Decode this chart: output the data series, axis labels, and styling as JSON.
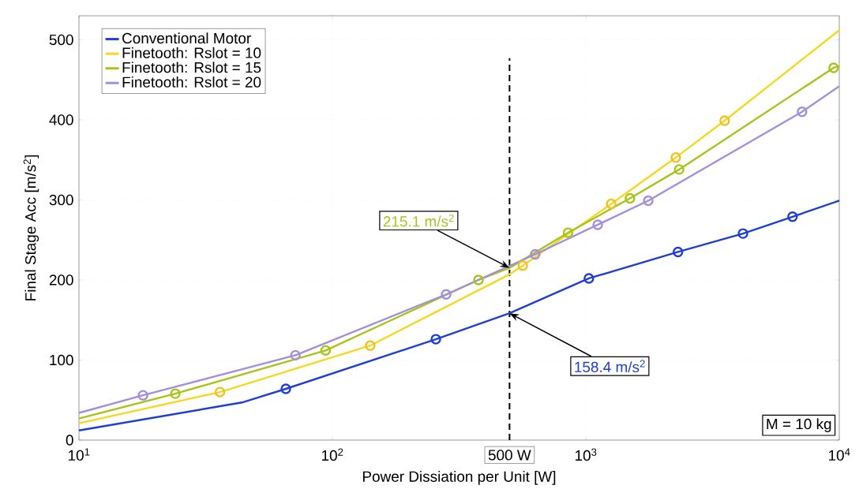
{
  "chart_data": {
    "type": "line",
    "xlabel": "Power Dissiation per Unit [W]",
    "ylabel": "Final Stage Acc [m/s$^{2}$]",
    "log": "x",
    "grid": true,
    "legend": "top left",
    "line_style": "solid",
    "xlim": [
      10,
      10000
    ],
    "ylim": [
      0,
      530
    ],
    "xticks": [
      {
        "value": 10,
        "label": "10$^{1}$"
      },
      {
        "value": 100,
        "label": "10$^{2}$"
      },
      {
        "value": 1000,
        "label": "10$^{3}$"
      },
      {
        "value": 10000,
        "label": "10$^{4}$"
      }
    ],
    "yticks": [
      0,
      100,
      200,
      300,
      400,
      500
    ],
    "series": [
      {
        "name": "Conventional Motor",
        "color": "#1f3fd0",
        "x": [
          10,
          44,
          65.5,
          256,
          500,
          1028,
          2310,
          4170,
          6540,
          10000
        ],
        "values": [
          12,
          47,
          64,
          126,
          158.4,
          202,
          235,
          258,
          279,
          299
        ]
      },
      {
        "name": "Finetooth: Rslot = 10",
        "color": "#f5d820",
        "x": [
          10,
          36,
          141,
          500,
          564,
          1259,
          2265,
          3530,
          10000
        ],
        "values": [
          21,
          60,
          118,
          207,
          218,
          295,
          353,
          399,
          512
        ]
      },
      {
        "name": "Finetooth: Rslot = 15",
        "color": "#a8c41a",
        "x": [
          10,
          24,
          94,
          377,
          500,
          851,
          1493,
          2334,
          9500,
          10000
        ],
        "values": [
          27,
          58,
          112,
          200,
          215.1,
          259,
          302,
          338,
          465,
          467
        ]
      },
      {
        "name": "Finetooth: Rslot = 20",
        "color": "#a48fdc",
        "x": [
          10,
          17.9,
          71.5,
          281,
          631,
          1114,
          1763,
          7130,
          10000
        ],
        "values": [
          34,
          56,
          106,
          182,
          232,
          269,
          299,
          410,
          442
        ]
      },
      {
        "type": "scatter",
        "marker": "circle",
        "color": "#1f3fd0",
        "x": [
          65.5,
          256,
          1028,
          2310,
          4170,
          6540
        ],
        "values": [
          64,
          126,
          202,
          235,
          258,
          279
        ]
      },
      {
        "type": "scatter",
        "marker": "circle",
        "color": "#f2c020",
        "x": [
          36,
          141,
          564,
          1259,
          2265,
          3530
        ],
        "values": [
          60,
          118,
          218,
          295,
          353,
          399
        ]
      },
      {
        "type": "scatter",
        "marker": "circle",
        "color": "#a8c41a",
        "x": [
          24,
          94,
          377,
          851,
          1493,
          2334,
          9500
        ],
        "values": [
          58,
          112,
          200,
          259,
          302,
          338,
          465
        ]
      },
      {
        "type": "scatter",
        "marker": "circle",
        "color": "#a48fdc",
        "x": [
          17.9,
          71.5,
          281,
          631,
          1114,
          1763,
          7130
        ],
        "values": [
          56,
          106,
          182,
          232,
          269,
          299,
          410
        ]
      }
    ],
    "ref_lines": [
      {
        "axis": "x",
        "value": 500,
        "label": "500 W",
        "line_style": "dashed",
        "color": "#000000"
      }
    ],
    "annotations": [
      {
        "text": "215.1 m/s$^{2}$",
        "x": 500,
        "y": 215.1
      },
      {
        "text": "158.4 m/s$^{2}$",
        "x": 500,
        "y": 158.4
      },
      "M = 10 kg"
    ]
  }
}
